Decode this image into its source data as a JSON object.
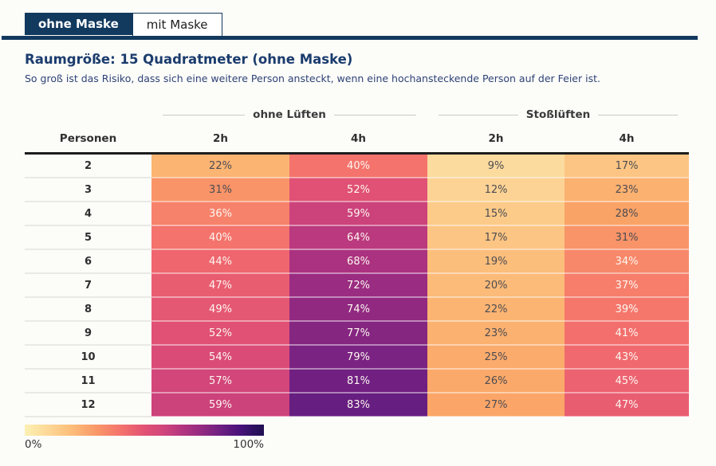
{
  "tabs": [
    {
      "label": "ohne Maske",
      "active": true
    },
    {
      "label": "mit Maske",
      "active": false
    }
  ],
  "accent_color": "#12395e",
  "header": {
    "title": "Raumgröße: 15 Quadratmeter (ohne Maske)",
    "subtitle": "So groß ist das Risiko, dass sich eine weitere Person ansteckt, wenn eine hochansteckende Person auf der Feier ist."
  },
  "table": {
    "groups": [
      {
        "label": "ohne Lüften"
      },
      {
        "label": "Stoßlüften"
      }
    ],
    "header": {
      "row_label": "Personen",
      "col_labels": [
        "2h",
        "4h",
        "2h",
        "4h"
      ]
    },
    "rows": [
      {
        "personen": "2",
        "cells": [
          {
            "v": "22%",
            "bg": "#fbb472",
            "light": false
          },
          {
            "v": "40%",
            "bg": "#f4736c",
            "light": true
          },
          {
            "v": "9%",
            "bg": "#fcdb9e",
            "light": false
          },
          {
            "v": "17%",
            "bg": "#fcc583",
            "light": false
          }
        ]
      },
      {
        "personen": "3",
        "cells": [
          {
            "v": "31%",
            "bg": "#f99468",
            "light": false
          },
          {
            "v": "52%",
            "bg": "#e05175",
            "light": true
          },
          {
            "v": "12%",
            "bg": "#fdd395",
            "light": false
          },
          {
            "v": "23%",
            "bg": "#fbb170",
            "light": false
          }
        ]
      },
      {
        "personen": "4",
        "cells": [
          {
            "v": "36%",
            "bg": "#f7826b",
            "light": true
          },
          {
            "v": "59%",
            "bg": "#cc427b",
            "light": true
          },
          {
            "v": "15%",
            "bg": "#fccb89",
            "light": false
          },
          {
            "v": "28%",
            "bg": "#faa367",
            "light": false
          }
        ]
      },
      {
        "personen": "5",
        "cells": [
          {
            "v": "40%",
            "bg": "#f4736c",
            "light": true
          },
          {
            "v": "64%",
            "bg": "#bb397e",
            "light": true
          },
          {
            "v": "17%",
            "bg": "#fcc583",
            "light": false
          },
          {
            "v": "31%",
            "bg": "#f99468",
            "light": false
          }
        ]
      },
      {
        "personen": "6",
        "cells": [
          {
            "v": "44%",
            "bg": "#ef666e",
            "light": true
          },
          {
            "v": "68%",
            "bg": "#ab3280",
            "light": true
          },
          {
            "v": "19%",
            "bg": "#fcbe7b",
            "light": false
          },
          {
            "v": "34%",
            "bg": "#f8886a",
            "light": true
          }
        ]
      },
      {
        "personen": "7",
        "cells": [
          {
            "v": "47%",
            "bg": "#e95d71",
            "light": true
          },
          {
            "v": "72%",
            "bg": "#9a2c81",
            "light": true
          },
          {
            "v": "20%",
            "bg": "#fcbb78",
            "light": false
          },
          {
            "v": "37%",
            "bg": "#f67e6b",
            "light": true
          }
        ]
      },
      {
        "personen": "8",
        "cells": [
          {
            "v": "49%",
            "bg": "#e55873",
            "light": true
          },
          {
            "v": "74%",
            "bg": "#912981",
            "light": true
          },
          {
            "v": "22%",
            "bg": "#fbb472",
            "light": false
          },
          {
            "v": "39%",
            "bg": "#f5776c",
            "light": true
          }
        ]
      },
      {
        "personen": "9",
        "cells": [
          {
            "v": "52%",
            "bg": "#e05175",
            "light": true
          },
          {
            "v": "77%",
            "bg": "#852681",
            "light": true
          },
          {
            "v": "23%",
            "bg": "#fbb170",
            "light": false
          },
          {
            "v": "41%",
            "bg": "#f36f6d",
            "light": true
          }
        ]
      },
      {
        "personen": "10",
        "cells": [
          {
            "v": "54%",
            "bg": "#da4c77",
            "light": true
          },
          {
            "v": "79%",
            "bg": "#7b2382",
            "light": true
          },
          {
            "v": "25%",
            "bg": "#fbab6c",
            "light": false
          },
          {
            "v": "43%",
            "bg": "#f0696e",
            "light": true
          }
        ]
      },
      {
        "personen": "11",
        "cells": [
          {
            "v": "57%",
            "bg": "#d2467a",
            "light": true
          },
          {
            "v": "81%",
            "bg": "#712082",
            "light": true
          },
          {
            "v": "26%",
            "bg": "#fba96a",
            "light": false
          },
          {
            "v": "45%",
            "bg": "#ed6270",
            "light": true
          }
        ]
      },
      {
        "personen": "12",
        "cells": [
          {
            "v": "59%",
            "bg": "#cc427b",
            "light": true
          },
          {
            "v": "83%",
            "bg": "#671e81",
            "light": true
          },
          {
            "v": "27%",
            "bg": "#fba668",
            "light": false
          },
          {
            "v": "47%",
            "bg": "#e95d71",
            "light": true
          }
        ]
      }
    ]
  },
  "legend": {
    "min_label": "0%",
    "max_label": "100%",
    "gradient_stops": [
      "#fbf1b3 0%",
      "#fdd796 10%",
      "#fcbc79 20%",
      "#f99768 30%",
      "#f4736c 40%",
      "#e25174 50%",
      "#d0457b 58%",
      "#b23580 66%",
      "#8f2981 75%",
      "#671e81 83%",
      "#49127b 90%",
      "#2d1160 96%",
      "#201050 100%"
    ]
  },
  "chart_data": {
    "type": "heatmap",
    "title": "Raumgröße: 15 Quadratmeter (ohne Maske)",
    "subtitle": "So groß ist das Risiko, dass sich eine weitere Person ansteckt, wenn eine hochansteckende Person auf der Feier ist.",
    "row_axis_label": "Personen",
    "row_categories": [
      2,
      3,
      4,
      5,
      6,
      7,
      8,
      9,
      10,
      11,
      12
    ],
    "column_groups": [
      "ohne Lüften",
      "Stoßlüften"
    ],
    "columns": [
      "ohne Lüften 2h",
      "ohne Lüften 4h",
      "Stoßlüften 2h",
      "Stoßlüften 4h"
    ],
    "values_percent": [
      [
        22,
        40,
        9,
        17
      ],
      [
        31,
        52,
        12,
        23
      ],
      [
        36,
        59,
        15,
        28
      ],
      [
        40,
        64,
        17,
        31
      ],
      [
        44,
        68,
        19,
        34
      ],
      [
        47,
        72,
        20,
        37
      ],
      [
        49,
        74,
        22,
        39
      ],
      [
        52,
        77,
        23,
        41
      ],
      [
        54,
        79,
        25,
        43
      ],
      [
        57,
        81,
        26,
        45
      ],
      [
        59,
        83,
        27,
        47
      ]
    ],
    "colormap": "light-yellow to dark-purple (magma reversed)",
    "legend": {
      "min": "0%",
      "max": "100%",
      "position": "bottom-left"
    }
  }
}
